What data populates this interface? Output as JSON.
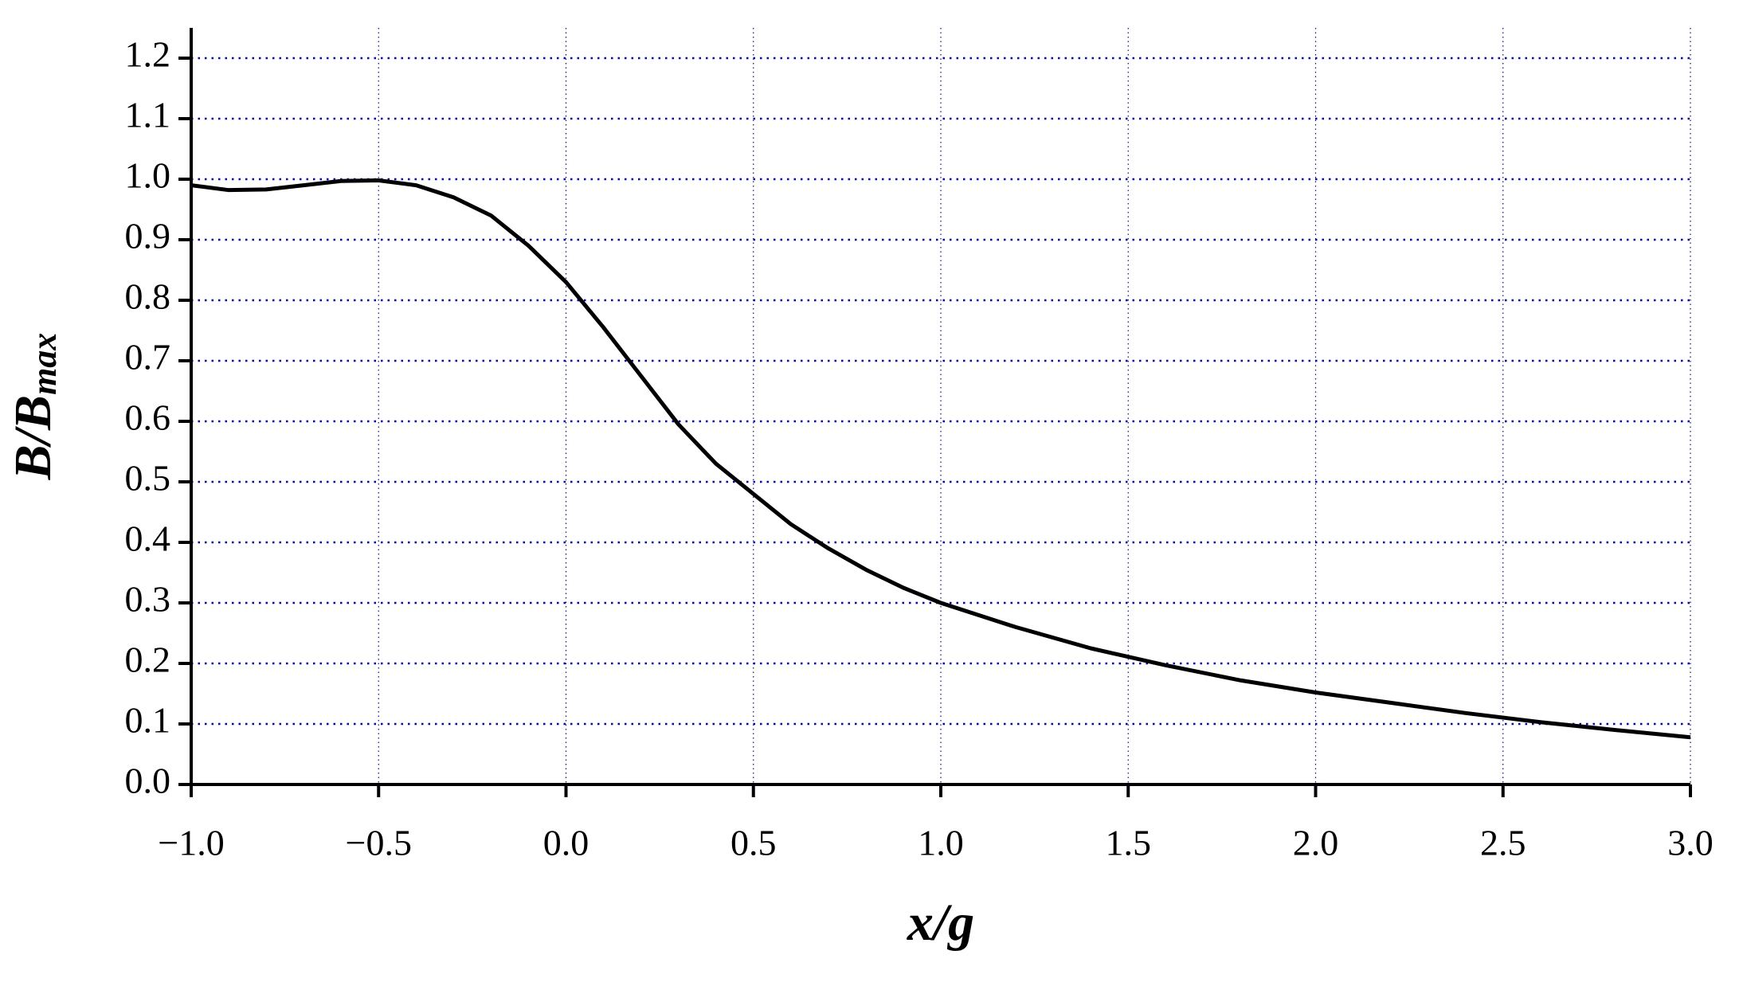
{
  "chart_data": {
    "type": "line",
    "x_label": "x/g",
    "y_label": {
      "main": "B/B",
      "sub": "max"
    },
    "x": [
      -1.0,
      -0.9,
      -0.8,
      -0.7,
      -0.6,
      -0.5,
      -0.4,
      -0.3,
      -0.2,
      -0.1,
      0.0,
      0.1,
      0.2,
      0.3,
      0.4,
      0.5,
      0.6,
      0.7,
      0.8,
      0.9,
      1.0,
      1.2,
      1.4,
      1.6,
      1.8,
      2.0,
      2.2,
      2.4,
      2.6,
      2.8,
      3.0
    ],
    "series": [
      {
        "color": "#000000",
        "values": [
          0.99,
          0.982,
          0.983,
          0.99,
          0.997,
          0.998,
          0.99,
          0.97,
          0.94,
          0.89,
          0.83,
          0.755,
          0.675,
          0.595,
          0.53,
          0.48,
          0.43,
          0.39,
          0.355,
          0.325,
          0.3,
          0.26,
          0.225,
          0.197,
          0.172,
          0.152,
          0.135,
          0.118,
          0.103,
          0.09,
          0.078
        ]
      }
    ],
    "xlim": [
      -1.0,
      3.0
    ],
    "ylim": [
      0.0,
      1.25
    ],
    "xticks": [
      {
        "value": -1.0,
        "label": "−1.0"
      },
      {
        "value": -0.5,
        "label": "−0.5"
      },
      {
        "value": 0.0,
        "label": "0.0"
      },
      0.5,
      {
        "value": 1.0,
        "label": "1.0"
      },
      1.5,
      {
        "value": 2.0,
        "label": "2.0"
      },
      2.5,
      {
        "value": 3.0,
        "label": "3.0"
      }
    ],
    "yticks": [
      {
        "value": 0.0,
        "label": "0.0"
      },
      0.1,
      0.2,
      0.3,
      0.4,
      0.5,
      0.6,
      0.7,
      0.8,
      0.9,
      {
        "value": 1.0,
        "label": "1.0"
      },
      1.1,
      1.2
    ],
    "grid": true,
    "grid_color": "#0000dd"
  }
}
